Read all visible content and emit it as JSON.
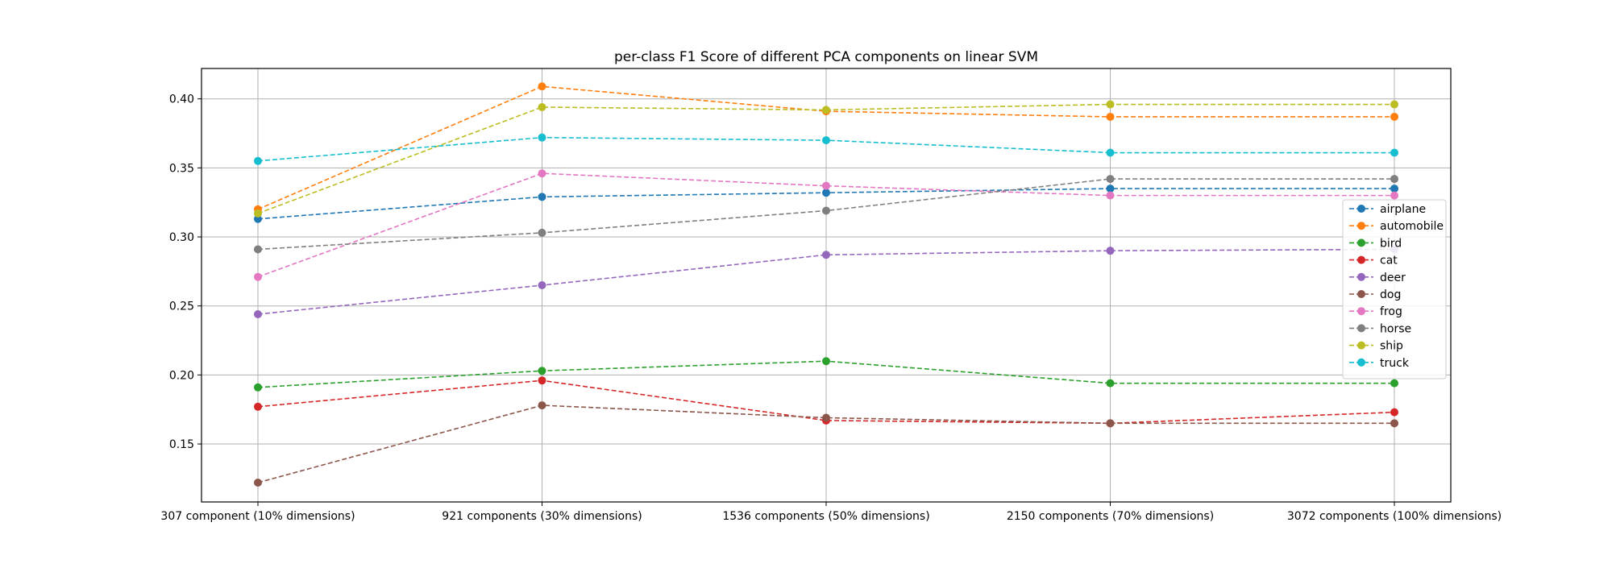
{
  "chart_data": {
    "type": "line",
    "title": "per-class F1 Score of different PCA components on linear SVM",
    "xlabel": "",
    "ylabel": "",
    "categories": [
      "307 component (10% dimensions)",
      "921 components (30% dimensions)",
      "1536 components (50% dimensions)",
      "2150 components (70% dimensions)",
      "3072 components (100% dimensions)"
    ],
    "ylim": [
      0.108,
      0.422
    ],
    "yticks": [
      0.15,
      0.2,
      0.25,
      0.3,
      0.35,
      0.4
    ],
    "ytick_labels": [
      "0.15",
      "0.20",
      "0.25",
      "0.30",
      "0.35",
      "0.40"
    ],
    "grid": true,
    "line_style": "dashed",
    "marker": "circle",
    "legend_position": "center-right",
    "series": [
      {
        "name": "airplane",
        "color": "#1f77b4",
        "values": [
          0.313,
          0.329,
          0.332,
          0.335,
          0.335
        ]
      },
      {
        "name": "automobile",
        "color": "#ff7f0e",
        "values": [
          0.32,
          0.409,
          0.391,
          0.387,
          0.387
        ]
      },
      {
        "name": "bird",
        "color": "#2ca02c",
        "values": [
          0.191,
          0.203,
          0.21,
          0.194,
          0.194
        ]
      },
      {
        "name": "cat",
        "color": "#d62728",
        "values": [
          0.177,
          0.196,
          0.167,
          0.165,
          0.173
        ]
      },
      {
        "name": "deer",
        "color": "#9467bd",
        "values": [
          0.244,
          0.265,
          0.287,
          0.29,
          0.291
        ]
      },
      {
        "name": "dog",
        "color": "#8c564b",
        "values": [
          0.122,
          0.178,
          0.169,
          0.165,
          0.165
        ]
      },
      {
        "name": "frog",
        "color": "#e377c2",
        "values": [
          0.271,
          0.346,
          0.337,
          0.33,
          0.33
        ]
      },
      {
        "name": "horse",
        "color": "#7f7f7f",
        "values": [
          0.291,
          0.303,
          0.319,
          0.342,
          0.342
        ]
      },
      {
        "name": "ship",
        "color": "#bcbd22",
        "values": [
          0.317,
          0.394,
          0.392,
          0.396,
          0.396
        ]
      },
      {
        "name": "truck",
        "color": "#17becf",
        "values": [
          0.355,
          0.372,
          0.37,
          0.361,
          0.361
        ]
      }
    ]
  }
}
